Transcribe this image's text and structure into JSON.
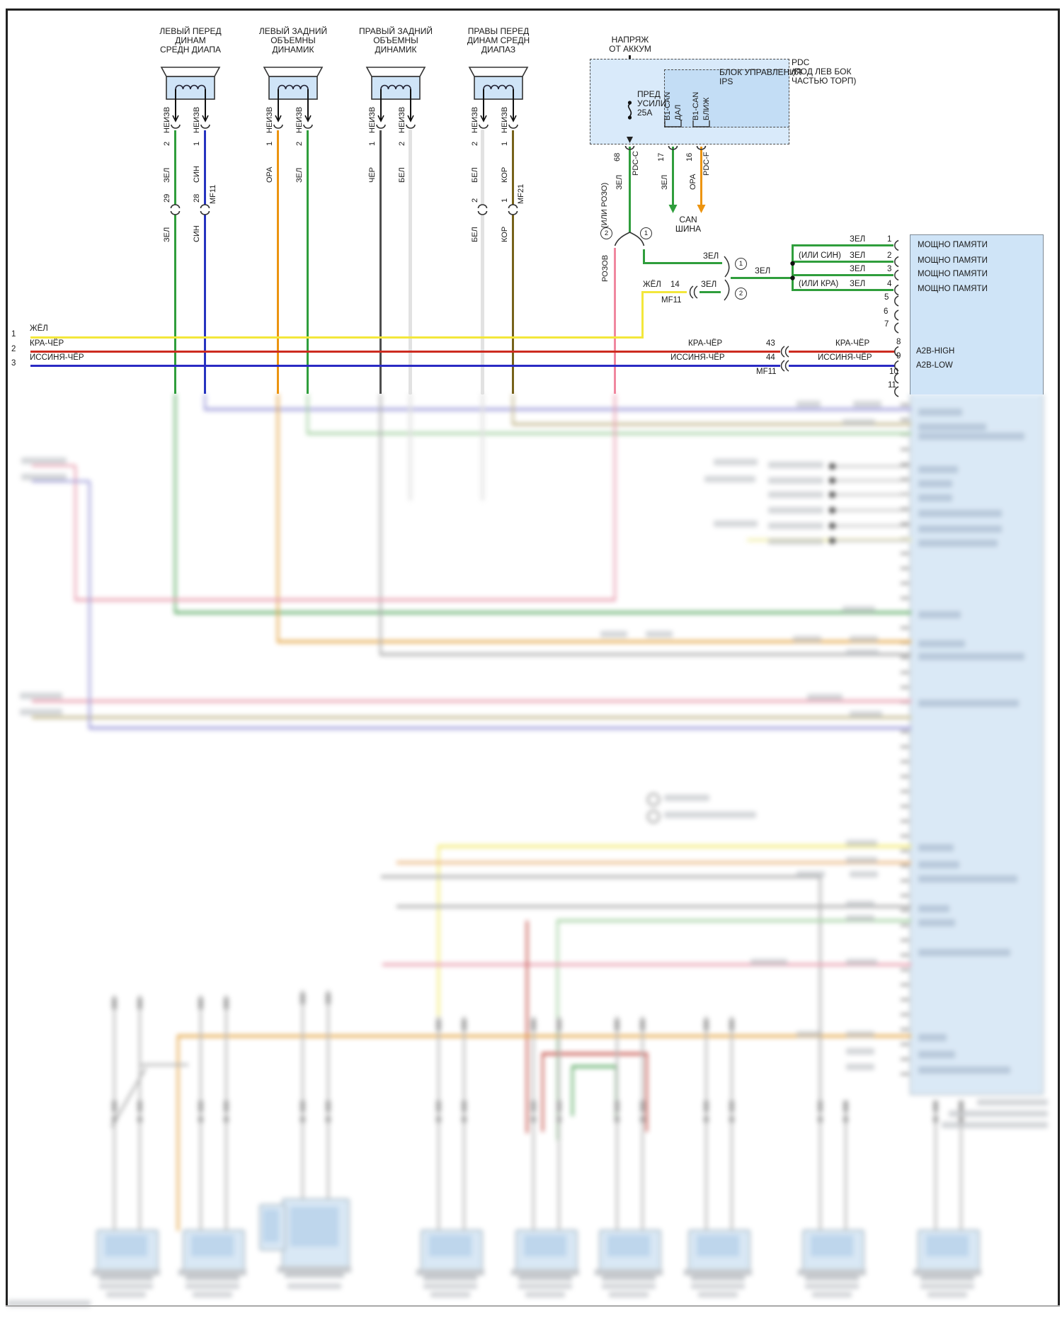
{
  "colors": {
    "green": "#2f9e3c",
    "blue": "#2633c0",
    "orange": "#ec9410",
    "black": "#4e4e4e",
    "white": "#e2e2e2",
    "brown": "#77621a",
    "yellow": "#f3e73b",
    "red_black": "#cd2b20",
    "blue_black": "#2a2ac4",
    "pink": "#f0879f",
    "unit_fill": "#cfe4f7",
    "pdc_fill": "#d9eafa",
    "ips_fill": "#c3ddf5"
  },
  "speakers": [
    {
      "t1": "ЛЕВЫЙ ПЕРЕД",
      "t2": "ДИНАМ",
      "t3": "СРЕДН ДИАПА",
      "lu": "НЕИЗВ",
      "ru": "НЕИЗВ",
      "lp": "2",
      "rp": "1",
      "lc": "ЗЕЛ",
      "rc": "СИН",
      "ln": "29",
      "rn": "28",
      "lb": "ЗЕЛ",
      "rb": "СИН",
      "mf": "MF11"
    },
    {
      "t1": "ЛЕВЫЙ ЗАДНИЙ",
      "t2": "ОБЪЕМНЫ",
      "t3": "ДИНАМИК",
      "lu": "НЕИЗВ",
      "ru": "НЕИЗВ",
      "lp": "1",
      "rp": "2",
      "lc": "ОРА",
      "rc": "ЗЕЛ"
    },
    {
      "t1": "ПРАВЫЙ ЗАДНИЙ",
      "t2": "ОБЪЕМНЫ",
      "t3": "ДИНАМИК",
      "lu": "НЕИЗВ",
      "ru": "НЕИЗВ",
      "lp": "1",
      "rp": "2",
      "lc": "ЧЁР",
      "rc": "БЕЛ"
    },
    {
      "t1": "ПРАВЫ ПЕРЕД",
      "t2": "ДИНАМ СРЕДН",
      "t3": "ДИАПАЗ",
      "lu": "НЕИЗВ",
      "ru": "НЕИЗВ",
      "lp": "2",
      "rp": "1",
      "lc": "БЕЛ",
      "rc": "КОР",
      "ln": "2",
      "rn": "1",
      "lb": "БЕЛ",
      "rb": "КОР",
      "mf": "MF21"
    }
  ],
  "pdc": {
    "supply1": "НАПРЯЖ",
    "supply2": "ОТ АККУМ",
    "fuse1": "ПРЕД",
    "fuse2": "УСИЛИ",
    "fuse3": "25А",
    "unit1": "БЛОК УПРАВЛЕНИЯ",
    "unit2": "IPS",
    "loc1": "PDC",
    "loc2": "(ПОД ЛЕВ БОК",
    "loc3": "ЧАСТЬЮ ТОРП)",
    "p68": "68",
    "p68name": "PDC-C",
    "p68color": "ЗЕЛ",
    "p68alt": "(ИЛИ РОЗО)",
    "p17": "17",
    "p17color": "ЗЕЛ",
    "p17bus1": "B1-CAN",
    "p17bus2": "ДАЛ",
    "p16": "16",
    "p16name": "PDC-F",
    "p16color": "ОРА",
    "p16bus1": "B1-CAN",
    "p16bus2": "БЛИЖ",
    "can1": "CAN",
    "can2": "ШИНА"
  },
  "mid": {
    "rozov": "РОЗОВ",
    "c2": "2",
    "c1": "1",
    "zel_in": "ЗЕЛ",
    "zhel": "ЖЁЛ",
    "n14": "14",
    "mf11": "MF11",
    "zel2": "ЗЕЛ",
    "b1": "1",
    "b2": "2",
    "zel_merged": "ЗЕЛ"
  },
  "unit": {
    "rows": [
      {
        "alt": "",
        "c": "ЗЕЛ",
        "p": "1",
        "lbl": "МОЩНО ПАМЯТИ"
      },
      {
        "alt": "(ИЛИ СИН)",
        "c": "ЗЕЛ",
        "p": "2",
        "lbl": "МОЩНО ПАМЯТИ"
      },
      {
        "alt": "",
        "c": "ЗЕЛ",
        "p": "3",
        "lbl": "МОЩНО ПАМЯТИ"
      },
      {
        "alt": "(ИЛИ КРА)",
        "c": "ЗЕЛ",
        "p": "4",
        "lbl": "МОЩНО ПАМЯТИ"
      }
    ],
    "p5": "5",
    "p6": "6",
    "p7": "7",
    "p10": "10",
    "p11": "11",
    "high": {
      "l": "КРА-ЧЁР",
      "n": "43",
      "r": "КРА-ЧЁР",
      "p": "8",
      "lbl": "A2B-HIGH"
    },
    "low": {
      "l": "ИССИНЯ-ЧЁР",
      "n": "44",
      "r": "ИССИНЯ-ЧЁР",
      "p": "9",
      "lbl": "A2B-LOW",
      "mf": "MF11"
    }
  },
  "bus": [
    {
      "n": "1",
      "c": "ЖЁЛ"
    },
    {
      "n": "2",
      "c": "КРА-ЧЁР"
    },
    {
      "n": "3",
      "c": "ИССИНЯ-ЧЁР"
    }
  ]
}
